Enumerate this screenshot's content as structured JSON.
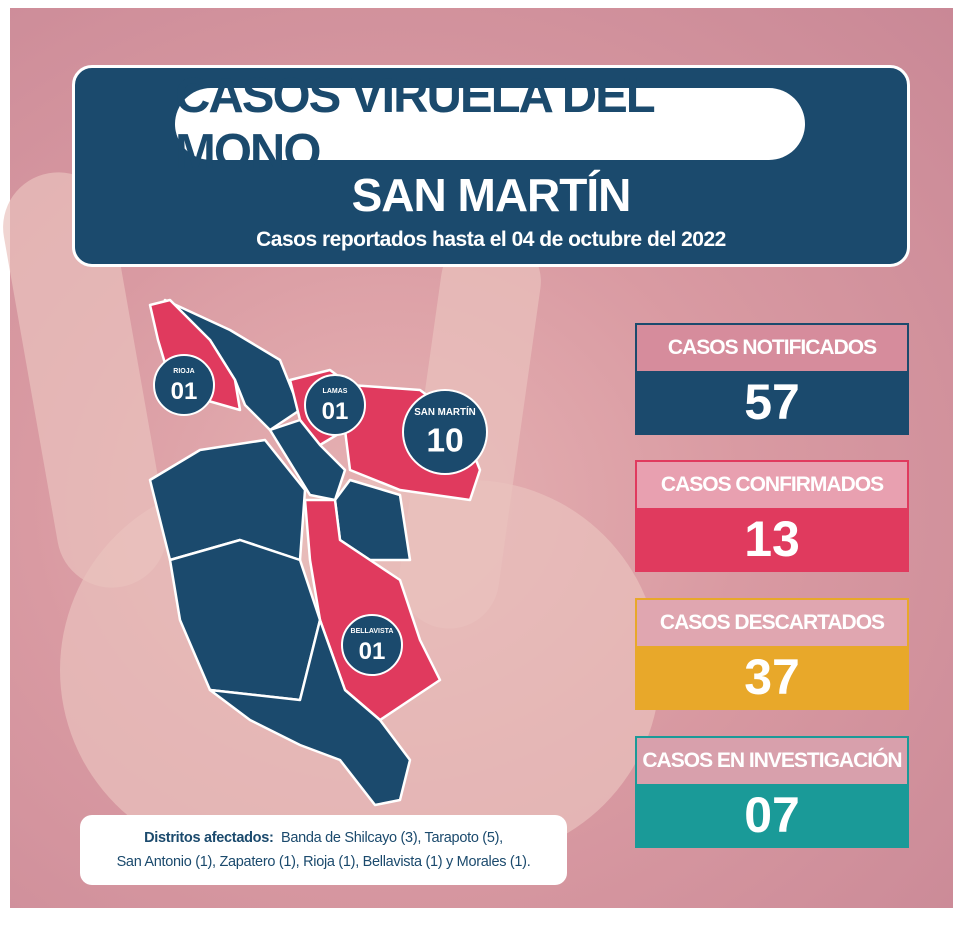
{
  "header": {
    "title": "CASOS VIRUELA DEL MONO",
    "subtitle": "SAN MARTÍN",
    "date_line": "Casos reportados hasta el 04 de octubre del 2022"
  },
  "map": {
    "badges": [
      {
        "name": "RIOJA",
        "count": "01"
      },
      {
        "name": "LAMAS",
        "count": "01"
      },
      {
        "name": "SAN MARTÍN",
        "count": "10"
      },
      {
        "name": "BELLAVISTA",
        "count": "01"
      }
    ]
  },
  "stats": [
    {
      "label": "CASOS NOTIFICADOS",
      "value": "57"
    },
    {
      "label": "CASOS CONFIRMADOS",
      "value": "13"
    },
    {
      "label": "CASOS DESCARTADOS",
      "value": "37"
    },
    {
      "label": "CASOS EN INVESTIGACIÓN",
      "value": "07"
    }
  ],
  "footer": {
    "lead": "Distritos afectados:",
    "line1": "Banda de Shilcayo (3), Tarapoto (5),",
    "line2": "San Antonio (1), Zapatero (1), Rioja (1), Bellavista (1) y Morales (1)."
  }
}
